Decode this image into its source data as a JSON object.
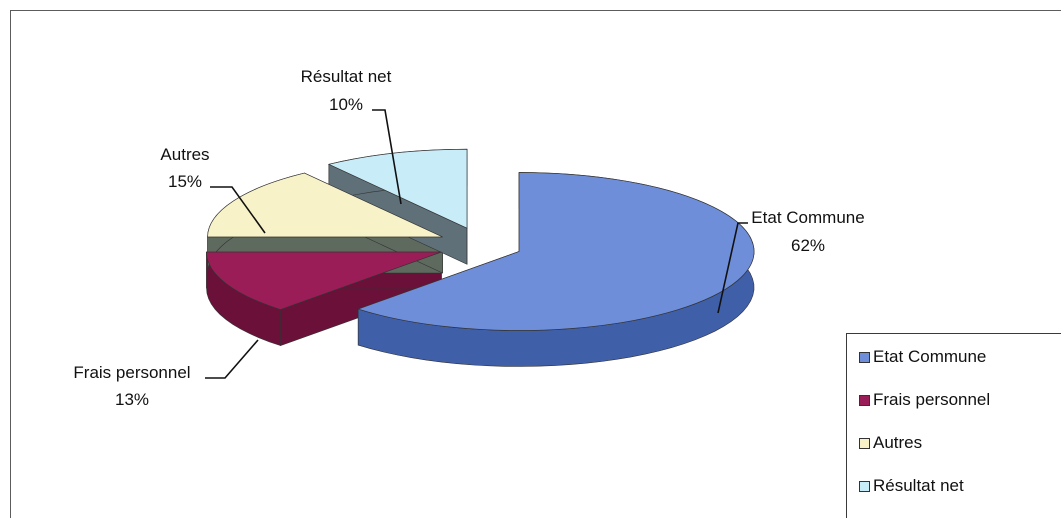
{
  "chart_data": {
    "type": "pie",
    "categories": [
      "Etat Commune",
      "Frais personnel",
      "Autres",
      "Résultat net"
    ],
    "values": [
      62,
      13,
      15,
      10
    ],
    "labels": [
      {
        "name": "Etat Commune",
        "pct": "62%"
      },
      {
        "name": "Frais personnel",
        "pct": "13%"
      },
      {
        "name": "Autres",
        "pct": "15%"
      },
      {
        "name": "Résultat net",
        "pct": "10%"
      }
    ],
    "colors": [
      "#6f8ed9",
      "#9b1d57",
      "#f7f2c8",
      "#c9ecf9"
    ],
    "side_colors": [
      "#3f5fa8",
      "#6b1039",
      "#5f6a5f",
      "#5f7078"
    ],
    "exploded": true,
    "legend_position": "bottom-right"
  },
  "legend": {
    "items": [
      "Etat Commune",
      "Frais personnel",
      "Autres",
      "Résultat net"
    ]
  }
}
